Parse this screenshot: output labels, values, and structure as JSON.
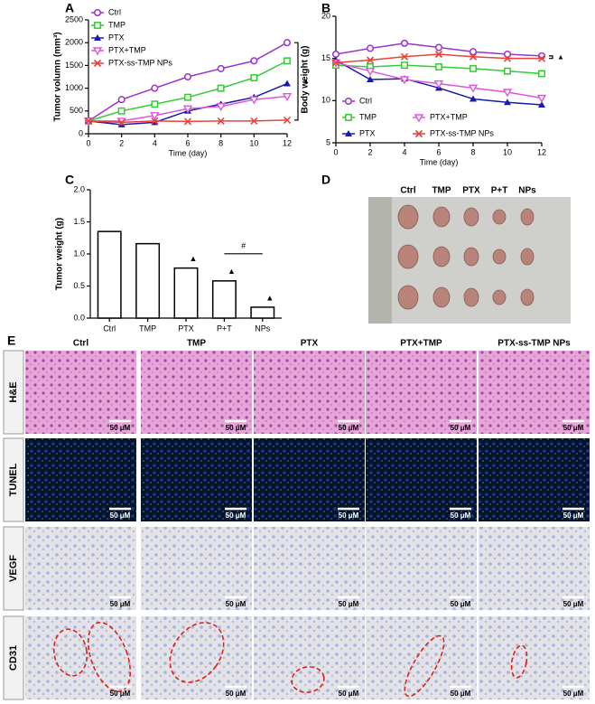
{
  "panel_labels": [
    "A",
    "B",
    "C",
    "D",
    "E"
  ],
  "chart_data": [
    {
      "type": "line",
      "y_label": "Tumor volumn (mm³)",
      "x_label": "Time (day)",
      "x": [
        0,
        2,
        4,
        6,
        8,
        10,
        12
      ],
      "xlim": [
        0,
        12
      ],
      "xticks": [
        0,
        2,
        4,
        6,
        8,
        10,
        12
      ],
      "ylim": [
        0,
        2500
      ],
      "yticks": [
        0,
        500,
        1000,
        1500,
        2000,
        2500
      ],
      "legend": "upper left",
      "annotation": "▲",
      "series": [
        {
          "name": "Ctrl",
          "color": "#9933cc",
          "marker": "circle",
          "values": [
            280,
            750,
            1000,
            1250,
            1430,
            1600,
            2000
          ]
        },
        {
          "name": "TMP",
          "color": "#33cc33",
          "marker": "square",
          "values": [
            280,
            500,
            650,
            800,
            1000,
            1230,
            1600
          ]
        },
        {
          "name": "PTX",
          "color": "#1a1aaa",
          "marker": "triangle",
          "values": [
            280,
            200,
            250,
            500,
            650,
            800,
            1100
          ]
        },
        {
          "name": "PTX+TMP",
          "color": "#dd55dd",
          "marker": "triangle-down",
          "values": [
            280,
            280,
            400,
            550,
            600,
            750,
            820
          ]
        },
        {
          "name": "PTX-ss-TMP NPs",
          "color": "#e8423a",
          "marker": "x",
          "values": [
            280,
            250,
            280,
            270,
            280,
            280,
            300
          ]
        }
      ]
    },
    {
      "type": "line",
      "y_label": "Body weight (g)",
      "x_label": "Time (day)",
      "x": [
        0,
        2,
        4,
        6,
        8,
        10,
        12
      ],
      "xlim": [
        0,
        12
      ],
      "xticks": [
        0,
        2,
        4,
        6,
        8,
        10,
        12
      ],
      "ylim": [
        5,
        20
      ],
      "yticks": [
        5,
        10,
        15,
        20
      ],
      "legend": "lower left",
      "annotation": "▲",
      "series": [
        {
          "name": "Ctrl",
          "color": "#9933cc",
          "marker": "circle",
          "values": [
            15.5,
            16.2,
            16.8,
            16.3,
            15.8,
            15.5,
            15.3
          ]
        },
        {
          "name": "TMP",
          "color": "#33cc33",
          "marker": "square",
          "values": [
            14.2,
            14.0,
            14.2,
            14.0,
            13.8,
            13.5,
            13.2
          ]
        },
        {
          "name": "PTX",
          "color": "#1a1aaa",
          "marker": "triangle",
          "values": [
            14.8,
            12.5,
            12.6,
            11.5,
            10.2,
            9.8,
            9.5
          ]
        },
        {
          "name": "PTX+TMP",
          "color": "#dd55dd",
          "marker": "triangle-down",
          "values": [
            14.5,
            13.5,
            12.5,
            12.0,
            11.5,
            11.0,
            10.3
          ]
        },
        {
          "name": "PTX-ss-TMP NPs",
          "color": "#e8423a",
          "marker": "x",
          "values": [
            14.5,
            14.8,
            15.2,
            15.5,
            15.2,
            15.0,
            15.0
          ]
        }
      ]
    },
    {
      "type": "bar",
      "y_label": "Tumor weight (g)",
      "categories": [
        "Ctrl",
        "TMP",
        "PTX",
        "P+T",
        "NPs"
      ],
      "values": [
        1.35,
        1.16,
        0.78,
        0.58,
        0.17
      ],
      "color": "#ffffff",
      "edge_color": "#000000",
      "ylim": [
        0,
        2
      ],
      "yticks": [
        {
          "value": 0,
          "label": "0.0"
        },
        {
          "value": 0.5,
          "label": "0.5"
        },
        {
          "value": 1,
          "label": "1.0"
        },
        {
          "value": 1.5,
          "label": "1.5"
        },
        {
          "value": 2,
          "label": "2.0"
        }
      ],
      "annotations": [
        {
          "category": "PTX",
          "text": "▲"
        },
        {
          "category": "P+T",
          "text": "▲"
        },
        {
          "category": "NPs",
          "text": "▲"
        }
      ],
      "significance": {
        "from": "P+T",
        "to": "NPs",
        "text": "#"
      }
    }
  ],
  "photo": {
    "labels": [
      "Ctrl",
      "TMP",
      "PTX",
      "P+T",
      "NPs"
    ]
  },
  "histology": {
    "columns": [
      "Ctrl",
      "TMP",
      "PTX",
      "PTX+TMP",
      "PTX-ss-TMP NPs"
    ],
    "rows": [
      "H&E",
      "TUNEL",
      "VEGF",
      "CD31"
    ],
    "scale_bar": "50 μM"
  }
}
